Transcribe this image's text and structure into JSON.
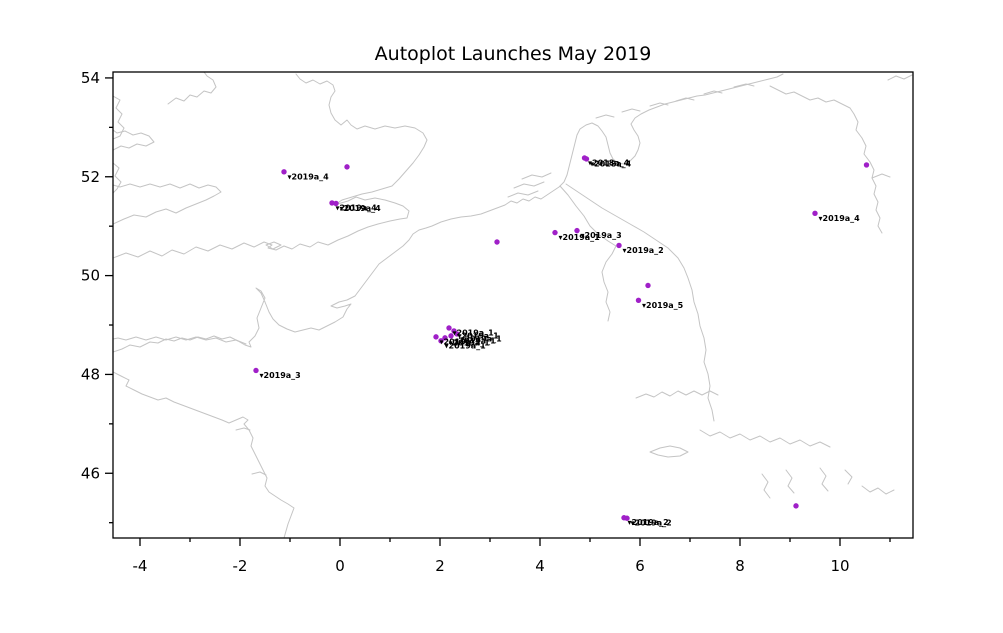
{
  "title": "Autoplot Launches May 2019",
  "chart_data": {
    "type": "scatter",
    "title": "Autoplot Launches May 2019",
    "xlabel": "",
    "ylabel": "",
    "xlim": [
      -4.54,
      11.46
    ],
    "ylim": [
      44.69,
      54.12
    ],
    "x_major_ticks": [
      -4,
      -2,
      0,
      2,
      4,
      6,
      8,
      10
    ],
    "x_minor_ticks": [
      -3,
      -1,
      1,
      3,
      5,
      7,
      9,
      11
    ],
    "y_major_ticks": [
      46,
      48,
      50,
      52,
      54
    ],
    "y_minor_ticks": [
      45,
      47,
      49,
      51,
      53
    ],
    "grid": false,
    "legend": null,
    "marker": {
      "shape": "circle",
      "color": "#A020C8",
      "size": 5
    },
    "label_arrow": "▾",
    "label_color": "#000000",
    "coastline_color": "#c4c4c4",
    "points": [
      {
        "lon": -1.12,
        "lat": 52.1,
        "label": "2019a_4"
      },
      {
        "lon": 0.14,
        "lat": 52.2,
        "label": null
      },
      {
        "lon": -0.16,
        "lat": 51.47,
        "label": "2019a_4"
      },
      {
        "lon": -0.08,
        "lat": 51.46,
        "label": "2019a_4"
      },
      {
        "lon": 4.89,
        "lat": 52.38,
        "label": "2018a_4"
      },
      {
        "lon": 4.93,
        "lat": 52.36,
        "label": "2018a_4"
      },
      {
        "lon": 3.14,
        "lat": 50.68,
        "label": null
      },
      {
        "lon": 4.3,
        "lat": 50.87,
        "label": "2019a_1"
      },
      {
        "lon": 4.74,
        "lat": 50.91,
        "label": "2019a_3"
      },
      {
        "lon": 5.58,
        "lat": 50.61,
        "label": "2019a_2"
      },
      {
        "lon": 6.16,
        "lat": 49.8,
        "label": null
      },
      {
        "lon": 5.97,
        "lat": 49.5,
        "label": "2019a_5"
      },
      {
        "lon": 9.5,
        "lat": 51.26,
        "label": "2019a_4"
      },
      {
        "lon": 10.53,
        "lat": 52.24,
        "label": null
      },
      {
        "lon": 1.92,
        "lat": 48.76,
        "label": "2019a_1"
      },
      {
        "lon": 2.18,
        "lat": 48.94,
        "label": "2019a_1"
      },
      {
        "lon": 2.28,
        "lat": 48.88,
        "label": "2019a_1"
      },
      {
        "lon": 2.34,
        "lat": 48.82,
        "label": "2019a_1"
      },
      {
        "lon": 2.22,
        "lat": 48.78,
        "label": "2019a_1"
      },
      {
        "lon": 2.1,
        "lat": 48.74,
        "label": "2019a_1"
      },
      {
        "lon": 2.02,
        "lat": 48.68,
        "label": "2019a_1"
      },
      {
        "lon": -1.68,
        "lat": 48.08,
        "label": "2019a_3"
      },
      {
        "lon": 5.68,
        "lat": 45.1,
        "label": "2019a_2"
      },
      {
        "lon": 5.74,
        "lat": 45.09,
        "label": "2019a_2"
      },
      {
        "lon": 9.12,
        "lat": 45.34,
        "label": null
      }
    ]
  }
}
